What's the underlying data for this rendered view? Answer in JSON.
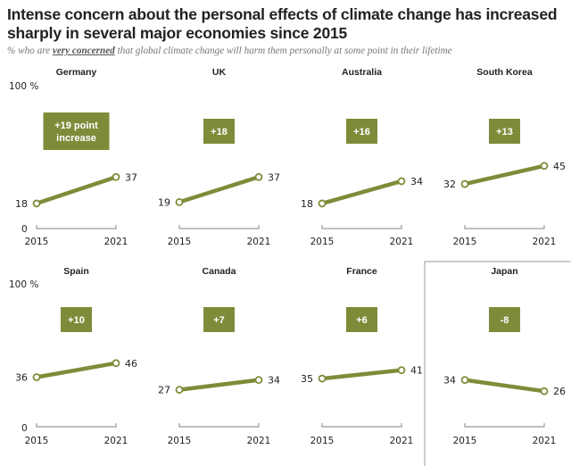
{
  "header": {
    "title": "Intense concern about the personal effects of climate change has increased sharply in several major economies since 2015",
    "subtitle_prefix": "% who are ",
    "subtitle_emphasis": "very concerned",
    "subtitle_suffix": " that global climate change will harm them personally at some point in their lifetime"
  },
  "colors": {
    "line": "#7e8c3a",
    "badge": "#7e8c3a",
    "axis": "#999999",
    "point_fill": "#ffffff"
  },
  "chart_data": {
    "type": "line",
    "title": "Intense concern about the personal effects of climate change has increased sharply in several major economies since 2015",
    "subtitle": "% who are very concerned that global climate change will harm them personally at some point in their lifetime",
    "x": [
      "2015",
      "2021"
    ],
    "ylim": [
      0,
      100
    ],
    "y_top_label": "100 %",
    "y_bottom_label": "0",
    "grid": false,
    "series": [
      {
        "name": "Germany",
        "values": [
          18,
          37
        ],
        "change_label": "+19 point increase",
        "change_lines": [
          "+19 point",
          "increase"
        ]
      },
      {
        "name": "UK",
        "values": [
          19,
          37
        ],
        "change_label": "+18",
        "change_lines": [
          "+18"
        ]
      },
      {
        "name": "Australia",
        "values": [
          18,
          34
        ],
        "change_label": "+16",
        "change_lines": [
          "+16"
        ]
      },
      {
        "name": "South Korea",
        "values": [
          32,
          45
        ],
        "change_label": "+13",
        "change_lines": [
          "+13"
        ]
      },
      {
        "name": "Spain",
        "values": [
          36,
          46
        ],
        "change_label": "+10",
        "change_lines": [
          "+10"
        ]
      },
      {
        "name": "Canada",
        "values": [
          27,
          34
        ],
        "change_label": "+7",
        "change_lines": [
          "+7"
        ]
      },
      {
        "name": "France",
        "values": [
          35,
          41
        ],
        "change_label": "+6",
        "change_lines": [
          "+6"
        ]
      },
      {
        "name": "Japan",
        "values": [
          34,
          26
        ],
        "change_label": "-8",
        "change_lines": [
          "-8"
        ],
        "highlighted": true
      }
    ]
  }
}
